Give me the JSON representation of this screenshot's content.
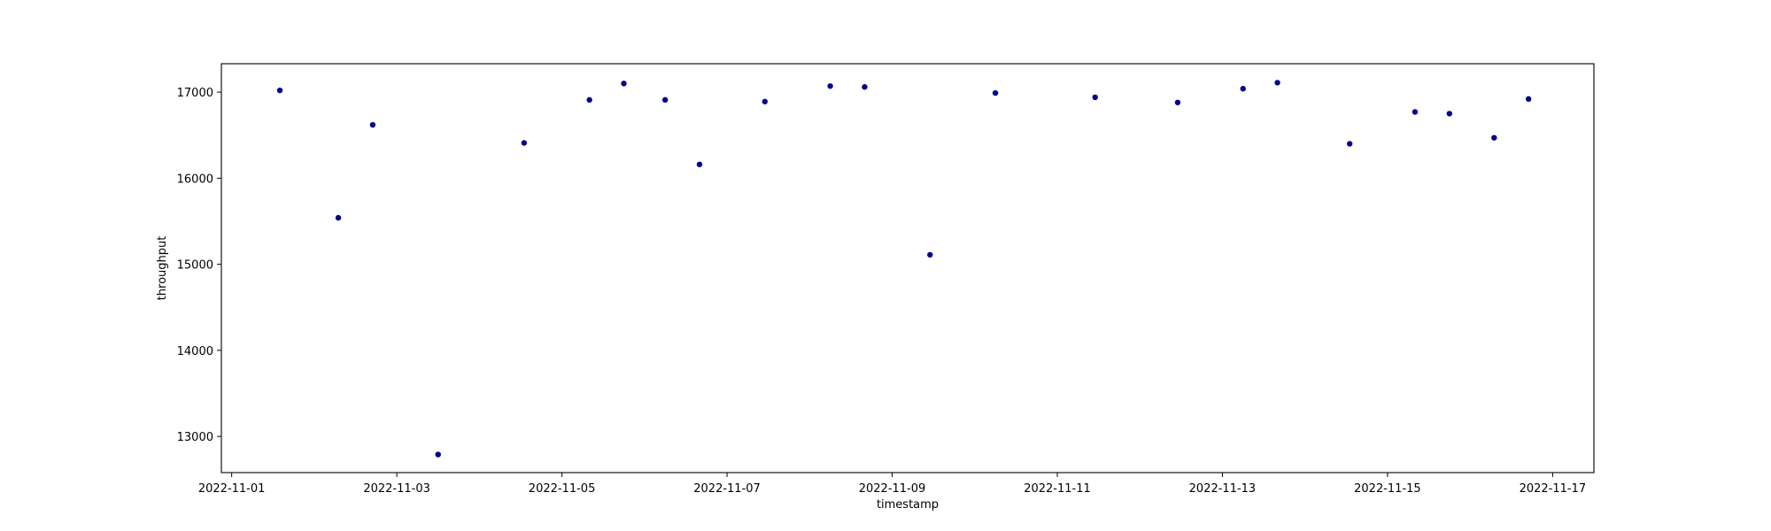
{
  "chart_data": {
    "type": "scatter",
    "xlabel": "timestamp",
    "ylabel": "throughput",
    "x_axis_kind": "date",
    "xlim": [
      "2022-10-31T21:00",
      "2022-11-17T12:00"
    ],
    "ylim": [
      12580,
      17330
    ],
    "xticks": [
      "2022-11-01",
      "2022-11-03",
      "2022-11-05",
      "2022-11-07",
      "2022-11-09",
      "2022-11-11",
      "2022-11-13",
      "2022-11-15",
      "2022-11-17"
    ],
    "yticks": [
      13000,
      14000,
      15000,
      16000,
      17000
    ],
    "grid": false,
    "marker_color": "#00008b",
    "series": [
      {
        "points": [
          {
            "x": "2022-11-01T14:00",
            "y": 17020
          },
          {
            "x": "2022-11-02T07:00",
            "y": 15540
          },
          {
            "x": "2022-11-02T17:00",
            "y": 16620
          },
          {
            "x": "2022-11-03T12:00",
            "y": 12790
          },
          {
            "x": "2022-11-04T13:00",
            "y": 16410
          },
          {
            "x": "2022-11-05T08:00",
            "y": 16910
          },
          {
            "x": "2022-11-05T18:00",
            "y": 17100
          },
          {
            "x": "2022-11-06T06:00",
            "y": 16910
          },
          {
            "x": "2022-11-06T16:00",
            "y": 16160
          },
          {
            "x": "2022-11-07T11:00",
            "y": 16890
          },
          {
            "x": "2022-11-08T06:00",
            "y": 17070
          },
          {
            "x": "2022-11-08T16:00",
            "y": 17060
          },
          {
            "x": "2022-11-09T11:00",
            "y": 15110
          },
          {
            "x": "2022-11-10T06:00",
            "y": 16990
          },
          {
            "x": "2022-11-11T11:00",
            "y": 16940
          },
          {
            "x": "2022-11-12T11:00",
            "y": 16880
          },
          {
            "x": "2022-11-13T06:00",
            "y": 17040
          },
          {
            "x": "2022-11-13T16:00",
            "y": 17110
          },
          {
            "x": "2022-11-14T13:00",
            "y": 16400
          },
          {
            "x": "2022-11-15T08:00",
            "y": 16770
          },
          {
            "x": "2022-11-15T18:00",
            "y": 16750
          },
          {
            "x": "2022-11-16T07:00",
            "y": 16470
          },
          {
            "x": "2022-11-16T17:00",
            "y": 16920
          }
        ]
      }
    ]
  }
}
